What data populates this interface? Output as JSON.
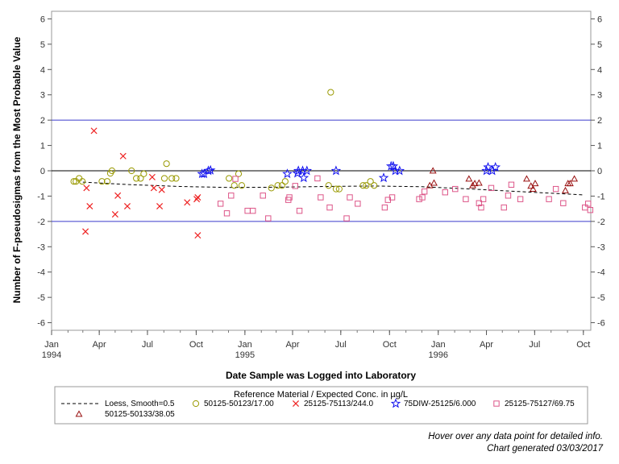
{
  "chart_data": {
    "type": "scatter",
    "xlabel": "Date Sample was Logged into Laboratory",
    "ylabel": "Number of F-pseudosigmas from the Most Probable Value",
    "ylim": [
      -6.3,
      6.3
    ],
    "xlim": [
      "1994-01-01",
      "1996-10-15"
    ],
    "y_ticks": [
      -6,
      -5,
      -4,
      -3,
      -2,
      -1,
      0,
      1,
      2,
      3,
      4,
      5,
      6
    ],
    "x_ticks": [
      {
        "date": "1994-01-01",
        "label": "Jan",
        "year": "1994"
      },
      {
        "date": "1994-04-01",
        "label": "Apr",
        "year": ""
      },
      {
        "date": "1994-07-01",
        "label": "Jul",
        "year": ""
      },
      {
        "date": "1994-10-01",
        "label": "Oct",
        "year": ""
      },
      {
        "date": "1995-01-01",
        "label": "Jan",
        "year": "1995"
      },
      {
        "date": "1995-04-01",
        "label": "Apr",
        "year": ""
      },
      {
        "date": "1995-07-01",
        "label": "Jul",
        "year": ""
      },
      {
        "date": "1995-10-01",
        "label": "Oct",
        "year": ""
      },
      {
        "date": "1996-01-01",
        "label": "Jan",
        "year": "1996"
      },
      {
        "date": "1996-04-01",
        "label": "Apr",
        "year": ""
      },
      {
        "date": "1996-07-01",
        "label": "Jul",
        "year": ""
      },
      {
        "date": "1996-10-01",
        "label": "Oct",
        "year": ""
      }
    ],
    "grid": false,
    "reference_lines": [
      {
        "y": 2,
        "color": "#3a3acc"
      },
      {
        "y": 0,
        "color": "#000000"
      },
      {
        "y": -2,
        "color": "#3a3acc"
      }
    ],
    "legend_title": "Reference Material / Expected Conc. in µg/L",
    "legend_position": "bottom",
    "loess": {
      "name": "Loess, Smooth=0.5",
      "color": "#000000",
      "points": [
        {
          "x": "1994-03-01",
          "y": -0.45
        },
        {
          "x": "1994-06-01",
          "y": -0.55
        },
        {
          "x": "1994-09-01",
          "y": -0.62
        },
        {
          "x": "1994-12-01",
          "y": -0.66
        },
        {
          "x": "1995-03-01",
          "y": -0.65
        },
        {
          "x": "1995-06-01",
          "y": -0.62
        },
        {
          "x": "1995-09-01",
          "y": -0.6
        },
        {
          "x": "1995-12-01",
          "y": -0.63
        },
        {
          "x": "1996-03-01",
          "y": -0.72
        },
        {
          "x": "1996-06-01",
          "y": -0.82
        },
        {
          "x": "1996-10-01",
          "y": -0.95
        }
      ]
    },
    "series": [
      {
        "name": "50125-50123/17.00",
        "marker": "circle",
        "color": "#999900",
        "points": [
          {
            "x": "1994-02-12",
            "y": -0.42
          },
          {
            "x": "1994-02-16",
            "y": -0.42
          },
          {
            "x": "1994-02-22",
            "y": -0.3
          },
          {
            "x": "1994-02-28",
            "y": -0.42
          },
          {
            "x": "1994-04-06",
            "y": -0.42
          },
          {
            "x": "1994-04-16",
            "y": -0.42
          },
          {
            "x": "1994-04-22",
            "y": -0.1
          },
          {
            "x": "1994-04-25",
            "y": 0.0
          },
          {
            "x": "1994-06-01",
            "y": 0.0
          },
          {
            "x": "1994-06-10",
            "y": -0.3
          },
          {
            "x": "1994-06-18",
            "y": -0.3
          },
          {
            "x": "1994-06-24",
            "y": -0.12
          },
          {
            "x": "1994-08-02",
            "y": -0.3
          },
          {
            "x": "1994-08-06",
            "y": 0.28
          },
          {
            "x": "1994-08-16",
            "y": -0.3
          },
          {
            "x": "1994-08-24",
            "y": -0.3
          },
          {
            "x": "1994-12-02",
            "y": -0.3
          },
          {
            "x": "1994-12-12",
            "y": -0.58
          },
          {
            "x": "1994-12-20",
            "y": -0.12
          },
          {
            "x": "1994-12-26",
            "y": -0.58
          },
          {
            "x": "1995-02-20",
            "y": -0.68
          },
          {
            "x": "1995-03-04",
            "y": -0.58
          },
          {
            "x": "1995-03-12",
            "y": -0.58
          },
          {
            "x": "1995-03-18",
            "y": -0.42
          },
          {
            "x": "1995-06-08",
            "y": -0.58
          },
          {
            "x": "1995-06-12",
            "y": 3.1
          },
          {
            "x": "1995-06-22",
            "y": -0.72
          },
          {
            "x": "1995-06-28",
            "y": -0.72
          },
          {
            "x": "1995-08-12",
            "y": -0.58
          },
          {
            "x": "1995-08-18",
            "y": -0.58
          },
          {
            "x": "1995-08-26",
            "y": -0.42
          },
          {
            "x": "1995-09-02",
            "y": -0.58
          }
        ]
      },
      {
        "name": "25125-75113/244.0",
        "marker": "x",
        "color": "#ee2222",
        "points": [
          {
            "x": "1994-03-06",
            "y": -2.4
          },
          {
            "x": "1994-03-08",
            "y": -0.68
          },
          {
            "x": "1994-03-14",
            "y": -1.4
          },
          {
            "x": "1994-03-22",
            "y": 1.58
          },
          {
            "x": "1994-05-01",
            "y": -1.72
          },
          {
            "x": "1994-05-06",
            "y": -0.98
          },
          {
            "x": "1994-05-16",
            "y": 0.58
          },
          {
            "x": "1994-05-24",
            "y": -1.4
          },
          {
            "x": "1994-07-10",
            "y": -0.25
          },
          {
            "x": "1994-07-13",
            "y": -0.68
          },
          {
            "x": "1994-07-24",
            "y": -1.4
          },
          {
            "x": "1994-07-28",
            "y": -0.75
          },
          {
            "x": "1994-09-14",
            "y": -1.25
          },
          {
            "x": "1994-10-02",
            "y": -1.12
          },
          {
            "x": "1994-10-04",
            "y": -1.05
          },
          {
            "x": "1994-10-04",
            "y": -2.55
          }
        ]
      },
      {
        "name": "75DIW-25125/6.000",
        "marker": "star",
        "color": "#1111ee",
        "points": [
          {
            "x": "1994-10-12",
            "y": -0.12
          },
          {
            "x": "1994-10-16",
            "y": -0.12
          },
          {
            "x": "1994-10-24",
            "y": 0.0
          },
          {
            "x": "1994-10-28",
            "y": 0.02
          },
          {
            "x": "1995-03-22",
            "y": -0.12
          },
          {
            "x": "1995-04-10",
            "y": -0.1
          },
          {
            "x": "1995-04-12",
            "y": 0.0
          },
          {
            "x": "1995-04-20",
            "y": 0.0
          },
          {
            "x": "1995-04-22",
            "y": -0.28
          },
          {
            "x": "1995-04-28",
            "y": 0.0
          },
          {
            "x": "1995-06-22",
            "y": 0.0
          },
          {
            "x": "1995-09-20",
            "y": -0.28
          },
          {
            "x": "1995-10-04",
            "y": 0.18
          },
          {
            "x": "1995-10-08",
            "y": 0.18
          },
          {
            "x": "1995-10-12",
            "y": 0.0
          },
          {
            "x": "1995-10-20",
            "y": 0.0
          },
          {
            "x": "1996-04-01",
            "y": 0.0
          },
          {
            "x": "1996-04-04",
            "y": 0.14
          },
          {
            "x": "1996-04-12",
            "y": 0.0
          },
          {
            "x": "1996-04-18",
            "y": 0.14
          }
        ]
      },
      {
        "name": "25125-75127/69.75",
        "marker": "square",
        "color": "#dd5588",
        "points": [
          {
            "x": "1994-11-16",
            "y": -1.3
          },
          {
            "x": "1994-11-28",
            "y": -1.68
          },
          {
            "x": "1994-12-06",
            "y": -0.98
          },
          {
            "x": "1994-12-14",
            "y": -0.32
          },
          {
            "x": "1995-01-06",
            "y": -1.58
          },
          {
            "x": "1995-01-16",
            "y": -1.58
          },
          {
            "x": "1995-02-04",
            "y": -0.98
          },
          {
            "x": "1995-02-14",
            "y": -1.88
          },
          {
            "x": "1995-03-24",
            "y": -1.15
          },
          {
            "x": "1995-03-26",
            "y": -1.05
          },
          {
            "x": "1995-04-06",
            "y": -0.6
          },
          {
            "x": "1995-04-14",
            "y": -1.58
          },
          {
            "x": "1995-05-18",
            "y": -0.3
          },
          {
            "x": "1995-05-24",
            "y": -1.05
          },
          {
            "x": "1995-06-10",
            "y": -1.45
          },
          {
            "x": "1995-07-12",
            "y": -1.88
          },
          {
            "x": "1995-07-18",
            "y": -1.05
          },
          {
            "x": "1995-08-02",
            "y": -1.3
          },
          {
            "x": "1995-09-22",
            "y": -1.45
          },
          {
            "x": "1995-09-28",
            "y": -1.15
          },
          {
            "x": "1995-10-06",
            "y": -1.05
          },
          {
            "x": "1995-11-26",
            "y": -1.12
          },
          {
            "x": "1995-12-02",
            "y": -1.05
          },
          {
            "x": "1995-12-06",
            "y": -0.82
          },
          {
            "x": "1996-01-14",
            "y": -0.85
          },
          {
            "x": "1996-02-02",
            "y": -0.72
          },
          {
            "x": "1996-02-22",
            "y": -1.12
          },
          {
            "x": "1996-03-18",
            "y": -1.28
          },
          {
            "x": "1996-03-22",
            "y": -1.45
          },
          {
            "x": "1996-03-26",
            "y": -1.12
          },
          {
            "x": "1996-04-10",
            "y": -0.68
          },
          {
            "x": "1996-05-04",
            "y": -1.45
          },
          {
            "x": "1996-05-12",
            "y": -0.98
          },
          {
            "x": "1996-05-18",
            "y": -0.55
          },
          {
            "x": "1996-06-04",
            "y": -1.12
          },
          {
            "x": "1996-07-28",
            "y": -1.12
          },
          {
            "x": "1996-08-10",
            "y": -0.72
          },
          {
            "x": "1996-08-24",
            "y": -1.28
          },
          {
            "x": "1996-10-04",
            "y": -1.45
          },
          {
            "x": "1996-10-10",
            "y": -1.3
          },
          {
            "x": "1996-10-14",
            "y": -1.55
          }
        ]
      },
      {
        "name": "50125-50133/38.05",
        "marker": "triangle",
        "color": "#991111",
        "points": [
          {
            "x": "1995-12-16",
            "y": -0.58
          },
          {
            "x": "1995-12-22",
            "y": 0.0
          },
          {
            "x": "1995-12-24",
            "y": -0.48
          },
          {
            "x": "1996-02-28",
            "y": -0.32
          },
          {
            "x": "1996-03-06",
            "y": -0.58
          },
          {
            "x": "1996-03-10",
            "y": -0.5
          },
          {
            "x": "1996-03-18",
            "y": -0.48
          },
          {
            "x": "1996-06-16",
            "y": -0.32
          },
          {
            "x": "1996-06-24",
            "y": -0.6
          },
          {
            "x": "1996-06-28",
            "y": -0.72
          },
          {
            "x": "1996-07-02",
            "y": -0.5
          },
          {
            "x": "1996-08-28",
            "y": -0.78
          },
          {
            "x": "1996-09-02",
            "y": -0.5
          },
          {
            "x": "1996-09-06",
            "y": -0.5
          },
          {
            "x": "1996-09-14",
            "y": -0.32
          }
        ]
      }
    ]
  },
  "notes": {
    "hover": "Hover over any data point for detailed info.",
    "generated": "Chart generated 03/03/2017"
  }
}
